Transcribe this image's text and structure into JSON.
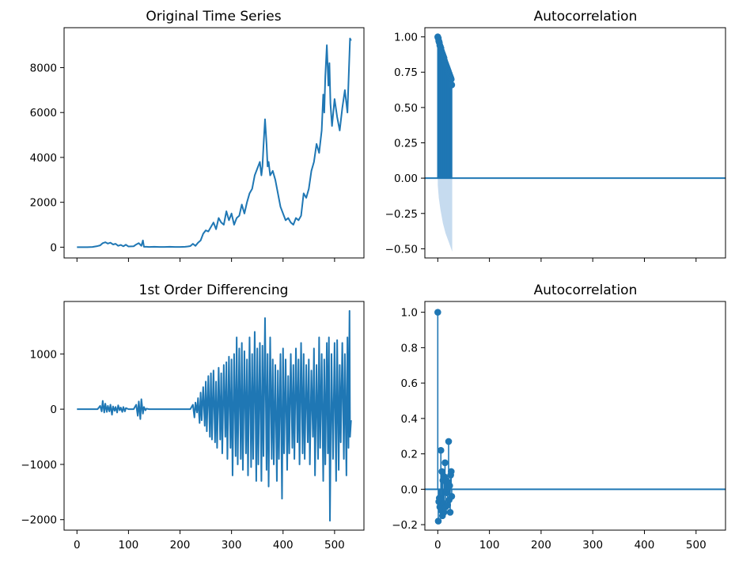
{
  "colors": {
    "series": "#1f77b4",
    "band": "#c6dbef",
    "axis": "#000000"
  },
  "chart_data": [
    {
      "id": "orig",
      "type": "line",
      "title": "Original Time Series",
      "xlim": [
        -25,
        557
      ],
      "ylim": [
        -480,
        9780
      ],
      "xticks": [
        0,
        100,
        200,
        300,
        400,
        500
      ],
      "yticks": [
        0,
        2000,
        4000,
        6000,
        8000
      ],
      "ytick_labels": [
        "0",
        "2000",
        "4000",
        "6000",
        "8000"
      ],
      "show_xtick_labels": false,
      "x": [
        0,
        10,
        20,
        30,
        40,
        45,
        50,
        55,
        60,
        65,
        70,
        75,
        80,
        85,
        90,
        95,
        100,
        110,
        115,
        120,
        125,
        128,
        130,
        135,
        140,
        150,
        160,
        170,
        180,
        190,
        200,
        210,
        215,
        220,
        225,
        230,
        235,
        240,
        245,
        250,
        255,
        260,
        265,
        270,
        275,
        280,
        285,
        290,
        295,
        300,
        305,
        310,
        315,
        320,
        325,
        330,
        335,
        340,
        345,
        350,
        355,
        358,
        360,
        362,
        365,
        368,
        370,
        372,
        375,
        380,
        385,
        390,
        395,
        400,
        405,
        410,
        415,
        420,
        425,
        430,
        435,
        440,
        445,
        450,
        455,
        460,
        465,
        470,
        475,
        478,
        480,
        482,
        485,
        488,
        490,
        492,
        495,
        500,
        505,
        510,
        515,
        520,
        525,
        528,
        530,
        532
      ],
      "values": [
        0,
        0,
        0,
        10,
        50,
        80,
        180,
        220,
        160,
        200,
        120,
        150,
        60,
        100,
        40,
        110,
        30,
        40,
        120,
        180,
        60,
        300,
        20,
        20,
        10,
        20,
        10,
        10,
        20,
        10,
        10,
        20,
        30,
        50,
        150,
        60,
        200,
        300,
        600,
        750,
        700,
        900,
        1100,
        800,
        1300,
        1100,
        1000,
        1600,
        1200,
        1500,
        1000,
        1300,
        1400,
        1900,
        1500,
        2000,
        2400,
        2600,
        3200,
        3500,
        3800,
        3200,
        3600,
        4500,
        5700,
        4600,
        3600,
        3800,
        3200,
        3400,
        3000,
        2400,
        1800,
        1500,
        1200,
        1300,
        1100,
        1000,
        1300,
        1200,
        1400,
        2400,
        2200,
        2600,
        3400,
        3800,
        4600,
        4200,
        5200,
        6800,
        6000,
        7600,
        9000,
        7200,
        8200,
        6400,
        5400,
        6600,
        5800,
        5200,
        6200,
        7000,
        6000,
        8000,
        9300,
        9200
      ]
    },
    {
      "id": "acf1",
      "type": "stem",
      "title": "Autocorrelation",
      "xlim": [
        -25,
        557
      ],
      "ylim": [
        -0.565,
        1.065
      ],
      "xticks": [
        0,
        100,
        200,
        300,
        400,
        500
      ],
      "yticks": [
        -0.5,
        -0.25,
        0,
        0.25,
        0.5,
        0.75,
        1
      ],
      "ytick_labels": [
        "−0.50",
        "−0.25",
        "0.00",
        "0.25",
        "0.50",
        "0.75",
        "1.00"
      ],
      "show_xtick_labels": false,
      "x": [
        0,
        1,
        2,
        3,
        4,
        5,
        6,
        7,
        8,
        9,
        10,
        11,
        12,
        13,
        14,
        15,
        16,
        17,
        18,
        19,
        20,
        21,
        22,
        23,
        24,
        25,
        26,
        27
      ],
      "values": [
        1.0,
        0.99,
        0.97,
        0.96,
        0.94,
        0.93,
        0.92,
        0.9,
        0.89,
        0.88,
        0.87,
        0.86,
        0.85,
        0.83,
        0.82,
        0.81,
        0.8,
        0.79,
        0.78,
        0.77,
        0.76,
        0.75,
        0.74,
        0.73,
        0.72,
        0.71,
        0.7,
        0.66
      ],
      "conf_band": {
        "x": [
          0,
          2,
          5,
          10,
          15,
          20,
          25,
          28
        ],
        "lower": [
          -0.05,
          -0.14,
          -0.22,
          -0.32,
          -0.39,
          -0.44,
          -0.49,
          -0.52
        ]
      }
    },
    {
      "id": "diff",
      "type": "line",
      "title": "1st Order Differencing",
      "xlim": [
        -25,
        557
      ],
      "ylim": [
        -2190,
        1950
      ],
      "xticks": [
        0,
        100,
        200,
        300,
        400,
        500
      ],
      "xtick_labels": [
        "0",
        "100",
        "200",
        "300",
        "400",
        "500"
      ],
      "yticks": [
        -2000,
        -1000,
        0,
        1000
      ],
      "ytick_labels": [
        "−2000",
        "−1000",
        "0",
        "1000"
      ],
      "show_xtick_labels": true,
      "x": [
        0,
        40,
        45,
        48,
        50,
        53,
        55,
        58,
        60,
        63,
        65,
        68,
        70,
        73,
        75,
        78,
        80,
        83,
        85,
        88,
        90,
        93,
        95,
        100,
        110,
        115,
        118,
        120,
        123,
        125,
        128,
        130,
        133,
        135,
        140,
        150,
        200,
        220,
        225,
        228,
        230,
        233,
        235,
        238,
        240,
        242,
        245,
        248,
        250,
        252,
        255,
        258,
        260,
        262,
        265,
        268,
        270,
        272,
        275,
        278,
        280,
        282,
        285,
        288,
        290,
        292,
        295,
        298,
        300,
        302,
        305,
        308,
        310,
        312,
        315,
        318,
        320,
        322,
        325,
        328,
        330,
        332,
        335,
        338,
        340,
        342,
        345,
        348,
        350,
        352,
        355,
        358,
        360,
        362,
        365,
        368,
        370,
        372,
        375,
        378,
        380,
        382,
        385,
        388,
        390,
        392,
        395,
        398,
        400,
        402,
        405,
        408,
        410,
        412,
        415,
        418,
        420,
        422,
        425,
        428,
        430,
        432,
        435,
        438,
        440,
        442,
        445,
        448,
        450,
        452,
        455,
        458,
        460,
        462,
        465,
        468,
        470,
        472,
        475,
        478,
        480,
        482,
        485,
        487,
        489,
        491,
        494,
        497,
        500,
        503,
        505,
        508,
        510,
        512,
        515,
        518,
        520,
        523,
        525,
        527,
        529,
        530,
        532
      ],
      "values": [
        0,
        0,
        60,
        -40,
        150,
        -60,
        100,
        -50,
        60,
        -40,
        80,
        -100,
        50,
        -30,
        40,
        -60,
        70,
        -20,
        30,
        -50,
        40,
        -40,
        20,
        0,
        0,
        80,
        -120,
        140,
        -180,
        180,
        -80,
        40,
        -20,
        10,
        0,
        0,
        0,
        0,
        80,
        -150,
        120,
        -60,
        200,
        -250,
        300,
        -200,
        400,
        -300,
        500,
        -400,
        600,
        -500,
        650,
        -550,
        700,
        -600,
        500,
        -700,
        750,
        -550,
        650,
        -800,
        800,
        -500,
        850,
        -900,
        950,
        -700,
        900,
        -1200,
        1000,
        -850,
        1300,
        -1000,
        1100,
        -900,
        1200,
        -1100,
        1050,
        -800,
        900,
        -1200,
        1300,
        -1050,
        1000,
        -900,
        1400,
        -1300,
        1100,
        -1000,
        1200,
        -1300,
        1150,
        -850,
        1650,
        -1100,
        1000,
        -1400,
        1300,
        -900,
        900,
        -1000,
        800,
        -1300,
        700,
        -900,
        1000,
        -1620,
        1100,
        -800,
        900,
        -1100,
        600,
        -800,
        1000,
        -700,
        800,
        -900,
        1100,
        -600,
        900,
        -1000,
        1200,
        -800,
        1000,
        -900,
        800,
        -600,
        900,
        -1000,
        700,
        -500,
        1100,
        -1200,
        800,
        -900,
        1300,
        -700,
        1000,
        -1300,
        900,
        -1000,
        1200,
        -800,
        1300,
        -2020,
        1000,
        -900,
        1200,
        -1300,
        1250,
        -1100,
        800,
        -600,
        1200,
        -900,
        1000,
        -1200,
        1300,
        -700,
        1780,
        -500,
        -200
      ]
    },
    {
      "id": "acf2",
      "type": "stem",
      "title": "Autocorrelation",
      "xlim": [
        -25,
        557
      ],
      "ylim": [
        -0.231,
        1.061
      ],
      "xticks": [
        0,
        100,
        200,
        300,
        400,
        500
      ],
      "xtick_labels": [
        "0",
        "100",
        "200",
        "300",
        "400",
        "500"
      ],
      "yticks": [
        -0.2,
        0,
        0.2,
        0.4,
        0.6,
        0.8,
        1.0
      ],
      "ytick_labels": [
        "−0.2",
        "0.0",
        "0.2",
        "0.4",
        "0.6",
        "0.8",
        "1.0"
      ],
      "show_xtick_labels": true,
      "x": [
        0,
        1,
        2,
        3,
        4,
        5,
        6,
        7,
        8,
        9,
        10,
        11,
        12,
        13,
        14,
        15,
        16,
        17,
        18,
        19,
        20,
        21,
        22,
        23,
        24,
        25,
        26,
        27
      ],
      "values": [
        1.0,
        -0.18,
        -0.07,
        -0.05,
        -0.1,
        -0.06,
        0.22,
        -0.12,
        0.1,
        -0.15,
        0.05,
        -0.08,
        -0.13,
        0.07,
        0.15,
        -0.1,
        0.05,
        -0.02,
        0.03,
        -0.09,
        0.04,
        0.27,
        -0.06,
        0.02,
        -0.13,
        0.08,
        0.1,
        -0.04
      ]
    }
  ]
}
